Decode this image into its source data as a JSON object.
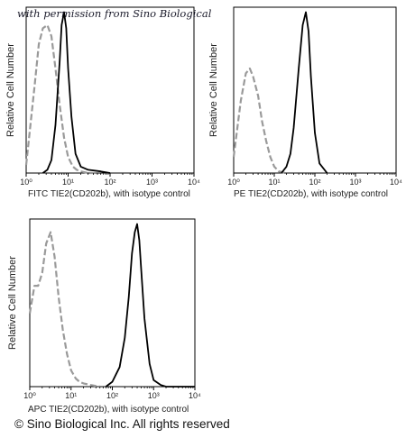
{
  "watermark": "with permission from Sino Biological",
  "copyright": "© Sino Biological Inc. All rights reserved",
  "colors": {
    "sample": "#000000",
    "isotype": "#9a9a9a"
  },
  "chart_data": [
    {
      "type": "line",
      "xscale": "log",
      "xlim": [
        1,
        10000
      ],
      "ylabel": "Relative Cell Number",
      "xlabel": "FITC TIE2(CD202b),  with isotype control",
      "xticks": [
        "10⁰",
        "10¹",
        "10²",
        "10³",
        "10⁴"
      ],
      "series": [
        {
          "style": "dashed-gray",
          "x": [
            1.0,
            1.6,
            2.0,
            2.5,
            3.2,
            4.0,
            5.0,
            6.3,
            8.0,
            10,
            13,
            16,
            20,
            30,
            50
          ],
          "y": [
            0.05,
            0.55,
            0.8,
            0.9,
            0.92,
            0.85,
            0.65,
            0.42,
            0.22,
            0.1,
            0.04,
            0.02,
            0.01,
            0.0,
            0.0
          ]
        },
        {
          "style": "solid-black",
          "x": [
            2.5,
            3.2,
            4.0,
            5.0,
            6.3,
            7.0,
            8.0,
            9.0,
            10,
            12,
            15,
            20,
            30,
            60,
            100
          ],
          "y": [
            0.0,
            0.02,
            0.08,
            0.3,
            0.7,
            0.92,
            1.0,
            0.9,
            0.65,
            0.35,
            0.12,
            0.04,
            0.02,
            0.01,
            0.0
          ]
        }
      ]
    },
    {
      "type": "line",
      "xscale": "log",
      "xlim": [
        1,
        10000
      ],
      "ylabel": "Relative Cell Number",
      "xlabel": "PE TIE2(CD202b),  with isotype control",
      "xticks": [
        "10⁰",
        "10¹",
        "10²",
        "10³",
        "10⁴"
      ],
      "series": [
        {
          "style": "dashed-gray",
          "x": [
            1.0,
            1.5,
            2.0,
            2.5,
            3.0,
            4.0,
            5.0,
            6.3,
            8.0,
            10,
            13,
            20
          ],
          "y": [
            0.1,
            0.45,
            0.62,
            0.65,
            0.6,
            0.48,
            0.32,
            0.2,
            0.1,
            0.04,
            0.01,
            0.0
          ]
        },
        {
          "style": "solid-black",
          "x": [
            15,
            20,
            25,
            30,
            40,
            50,
            60,
            70,
            80,
            100,
            130,
            200
          ],
          "y": [
            0.0,
            0.04,
            0.12,
            0.28,
            0.65,
            0.92,
            1.0,
            0.88,
            0.6,
            0.25,
            0.06,
            0.0
          ]
        }
      ]
    },
    {
      "type": "line",
      "xscale": "log",
      "xlim": [
        1,
        10000
      ],
      "ylabel": "Relative Cell Number",
      "xlabel": "APC TIE2(CD202b),  with isotype control",
      "xticks": [
        "10⁰",
        "10¹",
        "10²",
        "10³",
        "10⁴"
      ],
      "series": [
        {
          "style": "dashed-gray",
          "x": [
            1.0,
            1.3,
            1.6,
            2.0,
            2.5,
            3.2,
            4.0,
            5.0,
            6.3,
            8.0,
            10,
            13,
            16,
            20,
            30,
            50
          ],
          "y": [
            0.45,
            0.62,
            0.62,
            0.7,
            0.88,
            0.95,
            0.8,
            0.55,
            0.35,
            0.2,
            0.1,
            0.05,
            0.03,
            0.02,
            0.01,
            0.0
          ]
        },
        {
          "style": "solid-black",
          "x": [
            70,
            100,
            150,
            200,
            250,
            300,
            350,
            400,
            450,
            500,
            600,
            800,
            1000,
            1500,
            2000,
            10000
          ],
          "y": [
            0.0,
            0.03,
            0.12,
            0.3,
            0.55,
            0.82,
            0.95,
            1.0,
            0.9,
            0.72,
            0.42,
            0.14,
            0.04,
            0.01,
            0.0,
            0.0
          ]
        }
      ]
    }
  ]
}
